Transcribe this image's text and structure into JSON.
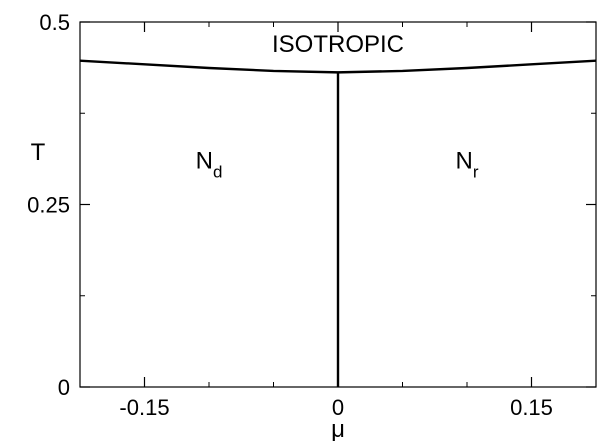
{
  "chart_data": {
    "type": "line",
    "title": "",
    "xlabel": "μ",
    "ylabel": "T",
    "xlim": [
      -0.2,
      0.2
    ],
    "ylim": [
      0,
      0.5
    ],
    "x_ticks": [
      {
        "value": -0.15,
        "label": "-0.15"
      },
      {
        "value": 0,
        "label": "0"
      },
      {
        "value": 0.15,
        "label": "0.15"
      }
    ],
    "y_ticks": [
      {
        "value": 0,
        "label": "0"
      },
      {
        "value": 0.25,
        "label": "0.25"
      },
      {
        "value": 0.5,
        "label": "0.5"
      }
    ],
    "grid": false,
    "series": [
      {
        "x": [
          -0.2,
          -0.15,
          -0.1,
          -0.05,
          0,
          0.05,
          0.1,
          0.15,
          0.2
        ],
        "y": [
          0.447,
          0.442,
          0.437,
          0.433,
          0.431,
          0.433,
          0.437,
          0.442,
          0.447
        ]
      },
      {
        "x": [
          0,
          0
        ],
        "y": [
          0,
          0.431
        ]
      }
    ],
    "annotations": [
      {
        "text": "ISOTROPIC",
        "x": 0,
        "y": 0.47
      },
      {
        "text": "N",
        "subscript": "d",
        "x": -0.1,
        "y": 0.31
      },
      {
        "text": "N",
        "subscript": "r",
        "x": 0.1,
        "y": 0.31
      }
    ]
  }
}
